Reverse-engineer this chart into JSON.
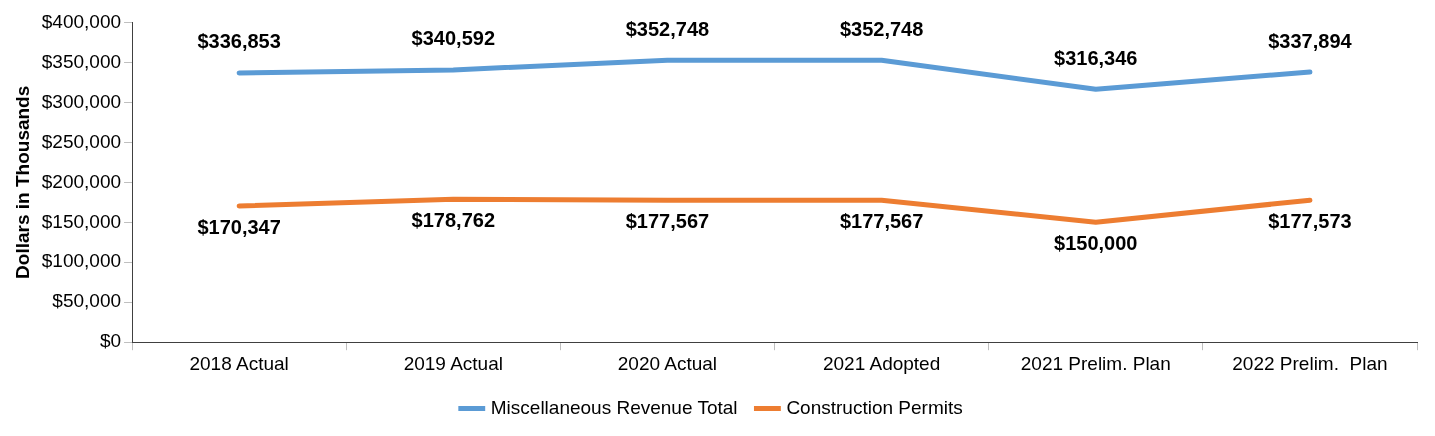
{
  "chart_data": {
    "type": "line",
    "ylabel": "Dollars in Thousands",
    "categories": [
      "2018 Actual",
      "2019 Actual",
      "2020 Actual",
      "2021 Adopted",
      "2021 Prelim. Plan",
      "2022 Prelim.  Plan"
    ],
    "series": [
      {
        "name": "Miscellaneous Revenue Total",
        "color": "#5b9bd5",
        "values": [
          336853,
          340592,
          352748,
          352748,
          316346,
          337894
        ],
        "value_labels": [
          "$336,853",
          "$340,592",
          "$352,748",
          "$352,748",
          "$316,346",
          "$337,894"
        ]
      },
      {
        "name": "Construction Permits",
        "color": "#ed7d31",
        "values": [
          170347,
          178762,
          177567,
          177567,
          150000,
          177573
        ],
        "value_labels": [
          "$170,347",
          "$178,762",
          "$177,567",
          "$177,567",
          "$150,000",
          "$177,573"
        ]
      }
    ],
    "ylim": [
      0,
      400000
    ],
    "yticks": [
      {
        "value": 0,
        "label": "$0"
      },
      {
        "value": 50000,
        "label": "$50,000"
      },
      {
        "value": 100000,
        "label": "$100,000"
      },
      {
        "value": 150000,
        "label": "$150,000"
      },
      {
        "value": 200000,
        "label": "$200,000"
      },
      {
        "value": 250000,
        "label": "$250,000"
      },
      {
        "value": 300000,
        "label": "$300,000"
      },
      {
        "value": 350000,
        "label": "$350,000"
      },
      {
        "value": 400000,
        "label": "$400,000"
      }
    ],
    "grid": false,
    "legend": "bottom",
    "marker": "none",
    "line_style": "solid"
  }
}
